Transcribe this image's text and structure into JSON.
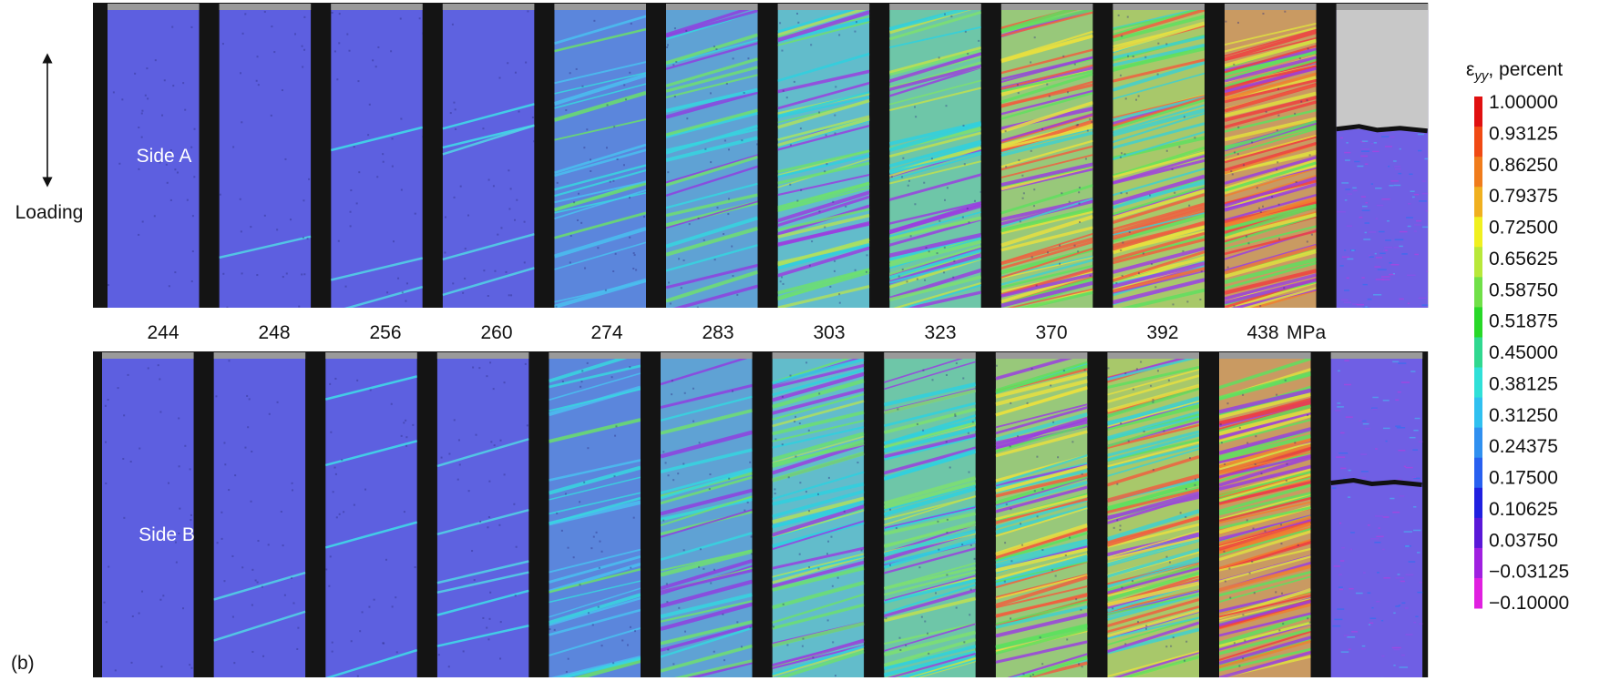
{
  "figure": {
    "label": "(b)",
    "loading_label": "Loading",
    "side_a": "Side A",
    "side_b": "Side B",
    "stresses": [
      "244",
      "248",
      "256",
      "260",
      "274",
      "283",
      "303",
      "323",
      "370",
      "392",
      "438"
    ],
    "stress_unit": "MPa",
    "colorbar": {
      "title_symbol": "ε",
      "title_subscript": "yy",
      "title_rest": ", percent",
      "labels": [
        "1.00000",
        "0.93125",
        "0.86250",
        "0.79375",
        "0.72500",
        "0.65625",
        "0.58750",
        "0.51875",
        "0.45000",
        "0.38125",
        "0.31250",
        "0.24375",
        "0.17500",
        "0.10625",
        "0.03750",
        "−0.03125",
        "−0.10000"
      ]
    }
  }
}
